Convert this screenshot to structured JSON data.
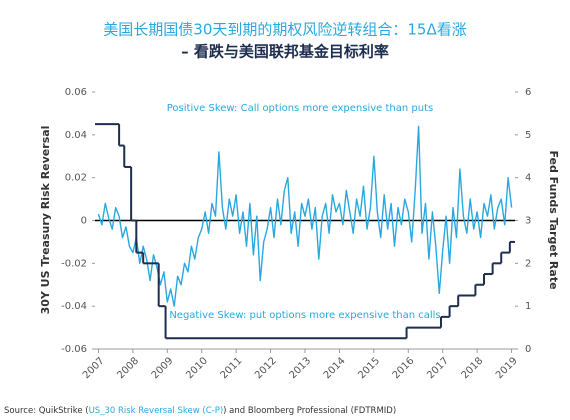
{
  "chart_data": {
    "type": "line",
    "title": "美国长期国债30天到期的期权风险逆转组合：15Δ看涨",
    "subtitle": "– 看跌与美国联邦基金目标利率",
    "y_label": "30Y US Treasury Risk Reversal",
    "y2_label": "Fed Funds Target Rate",
    "annotations": [
      "Positive Skew: Call options more expensive than puts",
      "Negative Skew: put options more expensive than calls"
    ],
    "source": [
      "Source: QuikStrike (",
      "US_30 Risk Reversal Skew (C-P)",
      ") and Bloomberg Professional (FDTRMID)"
    ],
    "xlim": [
      2006.9,
      2019.1
    ],
    "xticks": [
      2007,
      2008,
      2009,
      2010,
      2011,
      2012,
      2013,
      2014,
      2015,
      2016,
      2017,
      2018,
      2019
    ],
    "ylim": [
      -0.06,
      0.06
    ],
    "yticks": [
      0.06,
      0.04,
      0.02,
      0,
      -0.02,
      -0.04,
      -0.06
    ],
    "y2lim": [
      0,
      6
    ],
    "y2ticks": [
      6,
      5,
      4,
      3,
      2,
      1,
      0
    ],
    "reference_line": 0,
    "series": [
      {
        "name": "30Y US Treasury Risk Reversal",
        "color": "#29a8e0",
        "x": [
          2007,
          2007.1,
          2007.2,
          2007.3,
          2007.4,
          2007.5,
          2007.6,
          2007.7,
          2007.8,
          2007.9,
          2008,
          2008.1,
          2008.2,
          2008.3,
          2008.4,
          2008.5,
          2008.6,
          2008.7,
          2008.8,
          2008.9,
          2009,
          2009.1,
          2009.2,
          2009.3,
          2009.4,
          2009.5,
          2009.6,
          2009.7,
          2009.8,
          2009.9,
          2010,
          2010.1,
          2010.2,
          2010.3,
          2010.4,
          2010.5,
          2010.6,
          2010.7,
          2010.8,
          2010.9,
          2011,
          2011.1,
          2011.2,
          2011.3,
          2011.4,
          2011.5,
          2011.6,
          2011.7,
          2011.8,
          2011.9,
          2012,
          2012.1,
          2012.2,
          2012.3,
          2012.4,
          2012.5,
          2012.6,
          2012.7,
          2012.8,
          2012.9,
          2013,
          2013.1,
          2013.2,
          2013.3,
          2013.4,
          2013.5,
          2013.6,
          2013.7,
          2013.8,
          2013.9,
          2014,
          2014.1,
          2014.2,
          2014.3,
          2014.4,
          2014.5,
          2014.6,
          2014.7,
          2014.8,
          2014.9,
          2015,
          2015.1,
          2015.2,
          2015.3,
          2015.4,
          2015.5,
          2015.6,
          2015.7,
          2015.8,
          2015.9,
          2016,
          2016.1,
          2016.2,
          2016.3,
          2016.4,
          2016.5,
          2016.6,
          2016.7,
          2016.8,
          2016.9,
          2017,
          2017.1,
          2017.2,
          2017.3,
          2017.4,
          2017.5,
          2017.6,
          2017.7,
          2017.8,
          2017.9,
          2018,
          2018.1,
          2018.2,
          2018.3,
          2018.4,
          2018.5,
          2018.6,
          2018.7,
          2018.8,
          2018.9,
          2019
        ],
        "values": [
          0.003,
          -0.002,
          0.008,
          0.001,
          -0.004,
          0.006,
          0.002,
          -0.008,
          -0.003,
          -0.012,
          -0.015,
          -0.008,
          -0.02,
          -0.012,
          -0.018,
          -0.028,
          -0.016,
          -0.022,
          -0.03,
          -0.024,
          -0.038,
          -0.032,
          -0.04,
          -0.026,
          -0.03,
          -0.02,
          -0.024,
          -0.012,
          -0.018,
          -0.008,
          -0.004,
          0.004,
          -0.006,
          0.008,
          0.002,
          0.032,
          0.006,
          -0.004,
          0.01,
          0.002,
          0.012,
          -0.006,
          0.004,
          -0.012,
          0.008,
          -0.016,
          0.002,
          -0.028,
          -0.01,
          -0.004,
          0.006,
          -0.008,
          0.01,
          -0.002,
          0.014,
          0.02,
          -0.006,
          0.004,
          -0.012,
          0.008,
          0.002,
          0.01,
          -0.004,
          0.006,
          -0.018,
          0.002,
          0.008,
          -0.006,
          0.012,
          0.004,
          0.008,
          -0.002,
          0.014,
          0.004,
          -0.006,
          0.01,
          0.002,
          0.016,
          -0.004,
          0.006,
          0.03,
          0.004,
          -0.008,
          0.012,
          -0.004,
          0.008,
          -0.012,
          0.006,
          -0.002,
          0.01,
          0.004,
          -0.01,
          0.014,
          0.044,
          -0.006,
          0.008,
          -0.018,
          0.004,
          -0.012,
          -0.034,
          -0.014,
          0.002,
          -0.02,
          0.006,
          -0.008,
          0.024,
          0.002,
          -0.006,
          0.01,
          -0.004,
          0.004,
          -0.008,
          0.008,
          0.002,
          0.012,
          -0.004,
          0.006,
          0.01,
          -0.002,
          0.02,
          0.006
        ]
      },
      {
        "name": "Fed Funds Target Rate",
        "color": "#1d2d4e",
        "axis": "y2",
        "step": true,
        "x": [
          2006.9,
          2007.6,
          2007.75,
          2007.95,
          2008.1,
          2008.3,
          2008.75,
          2008.95,
          2015.95,
          2016.95,
          2017.2,
          2017.45,
          2017.95,
          2018.2,
          2018.45,
          2018.7,
          2018.95
        ],
        "values": [
          5.25,
          4.75,
          4.25,
          3.0,
          2.25,
          2.0,
          1.0,
          0.25,
          0.5,
          0.75,
          1.0,
          1.25,
          1.5,
          1.75,
          2.0,
          2.25,
          2.5
        ]
      }
    ]
  }
}
